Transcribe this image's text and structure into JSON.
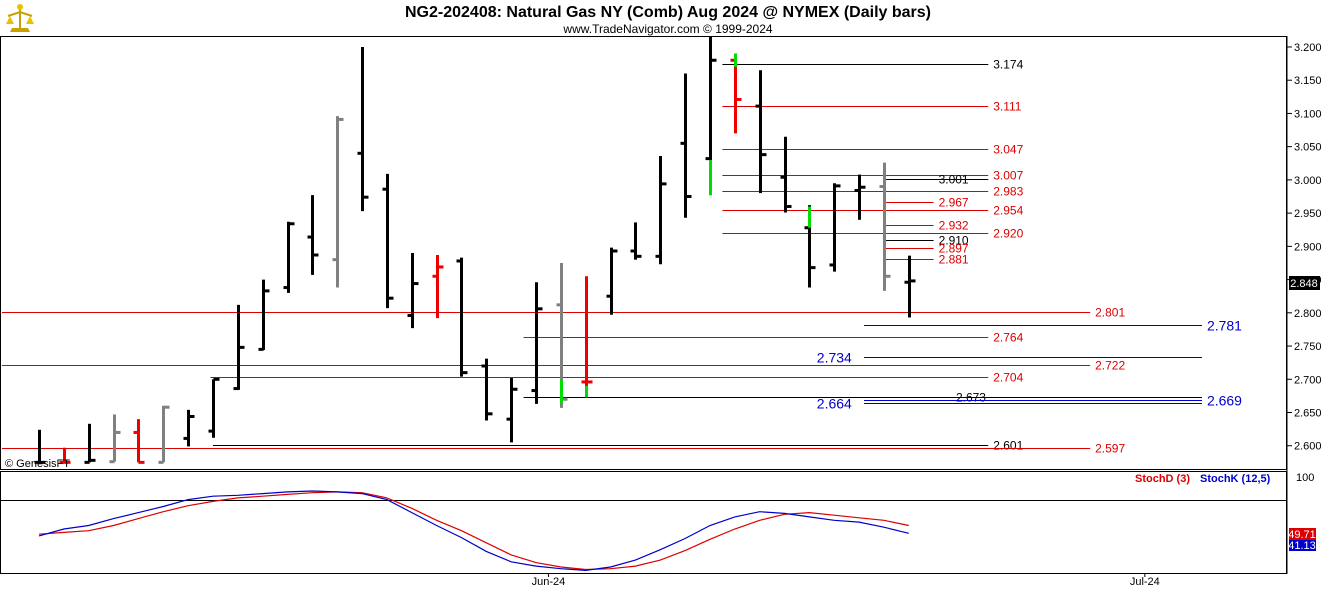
{
  "header": {
    "title": "NG2-202408:  Natural Gas NY (Comb) Aug 2024 @ NYMEX  (Daily bars)",
    "subtitle": "www.TradeNavigator.com © 1999-2024"
  },
  "watermark": "© GenesisFT",
  "colors": {
    "up": "#00dd00",
    "down": "#ee0000",
    "neutral": "#808080",
    "normal": "#000000",
    "red_level": "#dd0000",
    "blue_level": "#0000cc",
    "black_level": "#000000",
    "stoch_d": "#dd0000",
    "stoch_k": "#0000cc"
  },
  "chart_data": [
    {
      "type": "ohlc",
      "ylim": [
        2.565,
        3.215
      ],
      "yticks": [
        "3.200",
        "3.150",
        "3.100",
        "3.050",
        "3.000",
        "2.950",
        "2.900",
        "2.850",
        "2.800",
        "2.750",
        "2.700",
        "2.650",
        "2.600"
      ],
      "last_price": "2.848",
      "x_labels": [
        {
          "label": "Jun-24",
          "index": 20.5
        },
        {
          "label": "Jul-24",
          "index": 44.5
        }
      ],
      "bars": [
        {
          "o": 2.575,
          "h": 2.624,
          "l": 2.575,
          "c": 2.575,
          "col": "normal"
        },
        {
          "o": 2.575,
          "h": 2.597,
          "l": 2.575,
          "c": 2.575,
          "col": "down"
        },
        {
          "o": 2.575,
          "h": 2.633,
          "l": 2.575,
          "c": 2.578,
          "col": "normal"
        },
        {
          "o": 2.576,
          "h": 2.647,
          "l": 2.576,
          "c": 2.62,
          "col": "neutral"
        },
        {
          "o": 2.62,
          "h": 2.64,
          "l": 2.575,
          "c": 2.575,
          "col": "down"
        },
        {
          "o": 2.575,
          "h": 2.66,
          "l": 2.575,
          "c": 2.658,
          "col": "neutral"
        },
        {
          "o": 2.611,
          "h": 2.654,
          "l": 2.599,
          "c": 2.644,
          "col": "normal"
        },
        {
          "o": 2.622,
          "h": 2.7,
          "l": 2.612,
          "c": 2.7,
          "col": "normal"
        },
        {
          "o": 2.686,
          "h": 2.812,
          "l": 2.684,
          "c": 2.748,
          "col": "normal"
        },
        {
          "o": 2.745,
          "h": 2.85,
          "l": 2.744,
          "c": 2.833,
          "col": "normal"
        },
        {
          "o": 2.838,
          "h": 2.937,
          "l": 2.83,
          "c": 2.934,
          "col": "normal"
        },
        {
          "o": 2.914,
          "h": 2.977,
          "l": 2.857,
          "c": 2.887,
          "col": "normal"
        },
        {
          "o": 2.88,
          "h": 3.096,
          "l": 2.838,
          "c": 3.091,
          "col": "neutral"
        },
        {
          "o": 3.04,
          "h": 3.2,
          "l": 2.953,
          "c": 2.974,
          "col": "normal"
        },
        {
          "o": 2.986,
          "h": 3.009,
          "l": 2.807,
          "c": 2.822,
          "col": "normal"
        },
        {
          "o": 2.796,
          "h": 2.89,
          "l": 2.777,
          "c": 2.844,
          "col": "normal"
        },
        {
          "o": 2.855,
          "h": 2.887,
          "l": 2.792,
          "c": 2.869,
          "col": "down"
        },
        {
          "o": 2.878,
          "h": 2.883,
          "l": 2.704,
          "c": 2.71,
          "col": "normal"
        },
        {
          "o": 2.72,
          "h": 2.731,
          "l": 2.638,
          "c": 2.648,
          "col": "normal"
        },
        {
          "o": 2.64,
          "h": 2.702,
          "l": 2.605,
          "c": 2.685,
          "col": "normal"
        },
        {
          "o": 2.683,
          "h": 2.846,
          "l": 2.663,
          "c": 2.806,
          "col": "normal"
        },
        {
          "o": 2.812,
          "h": 2.875,
          "l": 2.657,
          "c": 2.67,
          "col": "neutral"
        },
        {
          "o": 2.696,
          "h": 2.855,
          "l": 2.673,
          "c": 2.696,
          "col": "down"
        },
        {
          "o": 2.825,
          "h": 2.898,
          "l": 2.797,
          "c": 2.893,
          "col": "normal"
        },
        {
          "o": 2.893,
          "h": 2.936,
          "l": 2.88,
          "c": 2.885,
          "col": "normal"
        },
        {
          "o": 2.885,
          "h": 3.036,
          "l": 2.873,
          "c": 2.994,
          "col": "normal"
        },
        {
          "o": 3.055,
          "h": 3.16,
          "l": 2.943,
          "c": 2.975,
          "col": "normal"
        },
        {
          "o": 3.032,
          "h": 3.215,
          "l": 2.977,
          "c": 3.18,
          "col": "normal"
        },
        {
          "o": 3.18,
          "h": 3.19,
          "l": 3.07,
          "c": 3.121,
          "col": "down"
        },
        {
          "o": 3.111,
          "h": 3.165,
          "l": 2.98,
          "c": 3.038,
          "col": "normal"
        },
        {
          "o": 3.004,
          "h": 3.065,
          "l": 2.951,
          "c": 2.96,
          "col": "normal"
        },
        {
          "o": 2.928,
          "h": 2.962,
          "l": 2.838,
          "c": 2.868,
          "col": "normal"
        },
        {
          "o": 2.872,
          "h": 2.995,
          "l": 2.862,
          "c": 2.991,
          "col": "normal"
        },
        {
          "o": 2.984,
          "h": 3.008,
          "l": 2.94,
          "c": 2.989,
          "col": "normal"
        },
        {
          "o": 2.99,
          "h": 3.026,
          "l": 2.833,
          "c": 2.855,
          "col": "neutral"
        },
        {
          "o": 2.846,
          "h": 2.886,
          "l": 2.793,
          "c": 2.848,
          "col": "normal"
        }
      ],
      "levels": [
        {
          "value": 3.174,
          "label": "3.174",
          "color": "black_level",
          "from": 27.5,
          "to": 38.2,
          "lx": 38.4,
          "big": false
        },
        {
          "value": 3.111,
          "label": "3.111",
          "color": "red_level",
          "from": 27.5,
          "to": 38.2,
          "lx": 38.4,
          "big": false
        },
        {
          "value": 3.047,
          "label": "3.047",
          "color": "red_level",
          "from": 27.5,
          "to": 38.2,
          "lx": 38.4,
          "big": false
        },
        {
          "value": 3.007,
          "label": "3.007",
          "color": "red_level",
          "from": 27.5,
          "to": 38.2,
          "lx": 38.4,
          "big": false
        },
        {
          "value": 3.001,
          "label": "3.001",
          "color": "black_level",
          "from": 34.0,
          "to": 38.2,
          "lx": 36.2,
          "big": false
        },
        {
          "value": 2.983,
          "label": "2.983",
          "color": "red_level",
          "from": 27.5,
          "to": 38.2,
          "lx": 38.4,
          "big": false
        },
        {
          "value": 2.967,
          "label": "2.967",
          "color": "red_level",
          "from": 34.0,
          "to": 36.0,
          "lx": 36.2,
          "big": false
        },
        {
          "value": 2.954,
          "label": "2.954",
          "color": "red_level",
          "from": 27.5,
          "to": 38.2,
          "lx": 38.4,
          "big": false
        },
        {
          "value": 2.932,
          "label": "2.932",
          "color": "red_level",
          "from": 34.0,
          "to": 36.0,
          "lx": 36.2,
          "big": false
        },
        {
          "value": 2.92,
          "label": "2.920",
          "color": "red_level",
          "from": 27.5,
          "to": 38.2,
          "lx": 38.4,
          "big": false
        },
        {
          "value": 2.91,
          "label": "2.910",
          "color": "black_level",
          "from": 34.0,
          "to": 36.0,
          "lx": 36.2,
          "big": false
        },
        {
          "value": 2.897,
          "label": "2.897",
          "color": "red_level",
          "from": 34.0,
          "to": 36.0,
          "lx": 36.2,
          "big": false
        },
        {
          "value": 2.881,
          "label": "2.881",
          "color": "red_level",
          "from": 34.0,
          "to": 36.0,
          "lx": 36.2,
          "big": false
        },
        {
          "value": 2.801,
          "label": "2.801",
          "color": "red_level",
          "from": -3.0,
          "to": 42.3,
          "lx": 42.5,
          "big": false
        },
        {
          "value": 2.781,
          "label": "2.781",
          "color": "blue_level",
          "from": 33.2,
          "to": 46.8,
          "lx": 47.0,
          "big": true
        },
        {
          "value": 2.764,
          "label": "2.764",
          "color": "red_level",
          "from": 19.5,
          "to": 38.2,
          "lx": 38.4,
          "big": false
        },
        {
          "value": 2.734,
          "label": "2.734",
          "color": "blue_level",
          "from": 33.2,
          "to": 46.8,
          "lx": 31.3,
          "big": true
        },
        {
          "value": 2.722,
          "label": "2.722",
          "color": "red_level",
          "from": -3.0,
          "to": 42.3,
          "lx": 42.5,
          "big": false
        },
        {
          "value": 2.704,
          "label": "2.704",
          "color": "red_level",
          "from": 6.9,
          "to": 38.2,
          "lx": 38.4,
          "big": false
        },
        {
          "value": 2.673,
          "label": "2.673",
          "color": "black_level",
          "from": 19.5,
          "to": 46.8,
          "lx": 36.9,
          "big": false
        },
        {
          "value": 2.669,
          "label": "2.669",
          "color": "blue_level",
          "from": 33.2,
          "to": 46.8,
          "lx": 47.0,
          "big": true
        },
        {
          "value": 2.664,
          "label": "2.664",
          "color": "blue_level",
          "from": 33.2,
          "to": 46.8,
          "lx": 31.3,
          "big": true
        },
        {
          "value": 2.601,
          "label": "2.601",
          "color": "black_level",
          "from": 7.0,
          "to": 38.2,
          "lx": 38.4,
          "big": false
        },
        {
          "value": 2.597,
          "label": "2.597",
          "color": "red_level",
          "from": -3.0,
          "to": 42.3,
          "lx": 42.5,
          "big": false
        }
      ]
    },
    {
      "type": "line",
      "ylim": [
        -5,
        112
      ],
      "yticks": [
        "100"
      ],
      "hline": 80,
      "legend": [
        {
          "name": "StochD (3)",
          "color": "stoch_d"
        },
        {
          "name": "StochK (12,5)",
          "color": "stoch_k"
        }
      ],
      "last_values": {
        "stoch_d": "49.71",
        "stoch_k": "41.13"
      },
      "series": [
        {
          "name": "StochD (3)",
          "color": "stoch_d",
          "values": [
            40,
            42,
            44,
            50,
            58,
            66,
            73,
            78,
            82,
            84,
            86,
            88,
            89,
            88,
            82,
            70,
            56,
            44,
            30,
            16,
            7,
            2,
            -1,
            0,
            3,
            10,
            21,
            34,
            46,
            56,
            63,
            65,
            62,
            59,
            56,
            50
          ]
        },
        {
          "name": "StochK (12,5)",
          "color": "stoch_k",
          "values": [
            38,
            46,
            50,
            58,
            65,
            72,
            80,
            84,
            85,
            87,
            89,
            90,
            89,
            87,
            80,
            65,
            50,
            36,
            20,
            8,
            3,
            0,
            -2,
            2,
            10,
            22,
            35,
            50,
            60,
            66,
            64,
            60,
            56,
            54,
            48,
            41
          ]
        }
      ]
    }
  ]
}
